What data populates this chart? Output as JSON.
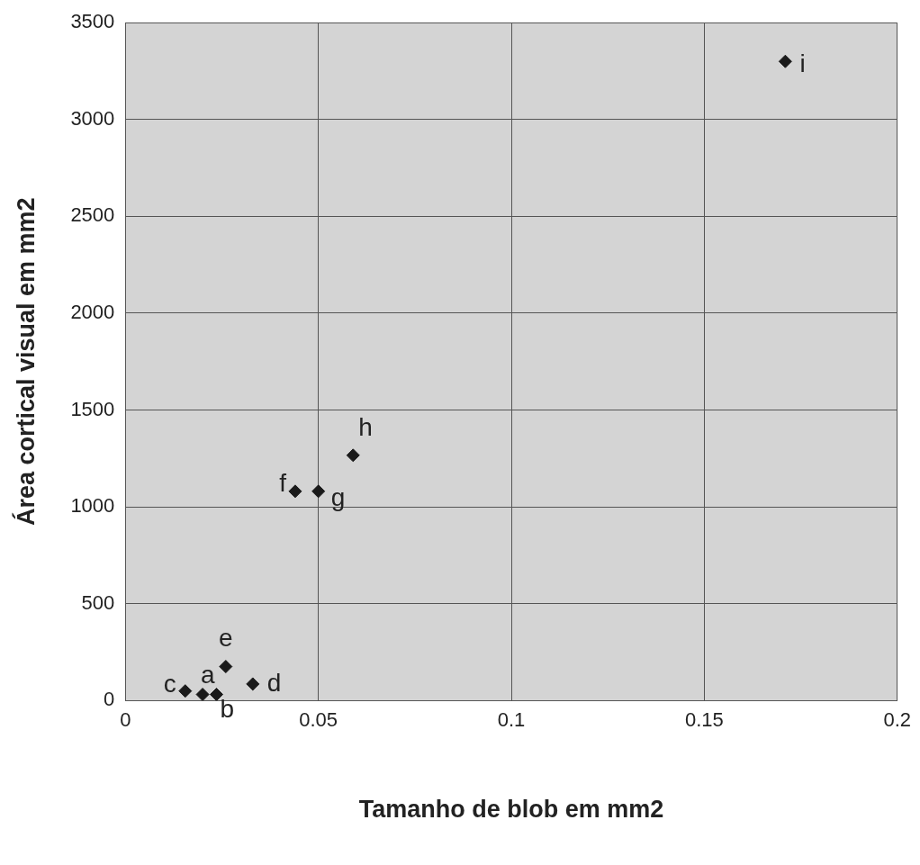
{
  "chart_data": {
    "type": "scatter",
    "xlabel": "Tamanho de blob em mm2",
    "ylabel": "Área cortical visual em mm2",
    "series": [
      {
        "color": "#1a1a1a",
        "x": [
          0.02,
          0.0236,
          0.0155,
          0.033,
          0.026,
          0.044,
          0.05,
          0.059,
          0.171
        ],
        "values": [
          31,
          31,
          49,
          85,
          175,
          1080,
          1080,
          1266,
          3300
        ]
      }
    ],
    "annotations": [
      {
        "text": "a",
        "x": 0.02,
        "y": 31
      },
      {
        "text": "b",
        "x": 0.0236,
        "y": 31
      },
      {
        "text": "c",
        "x": 0.0155,
        "y": 49
      },
      {
        "text": "d",
        "x": 0.033,
        "y": 85
      },
      {
        "text": "e",
        "x": 0.026,
        "y": 175
      },
      {
        "text": "f",
        "x": 0.044,
        "y": 1080
      },
      {
        "text": "g",
        "x": 0.05,
        "y": 1080
      },
      {
        "text": "h",
        "x": 0.059,
        "y": 1266
      },
      {
        "text": "i",
        "x": 0.171,
        "y": 3300
      }
    ],
    "xlim": [
      0,
      0.2
    ],
    "xticks": [
      0,
      0.05,
      0.1,
      0.15,
      0.2
    ],
    "ylim": [
      0,
      3500
    ],
    "yticks": [
      0,
      500,
      1000,
      1500,
      2000,
      2500,
      3000,
      3500
    ],
    "grid": true,
    "legend": false,
    "marker": "diamond"
  }
}
